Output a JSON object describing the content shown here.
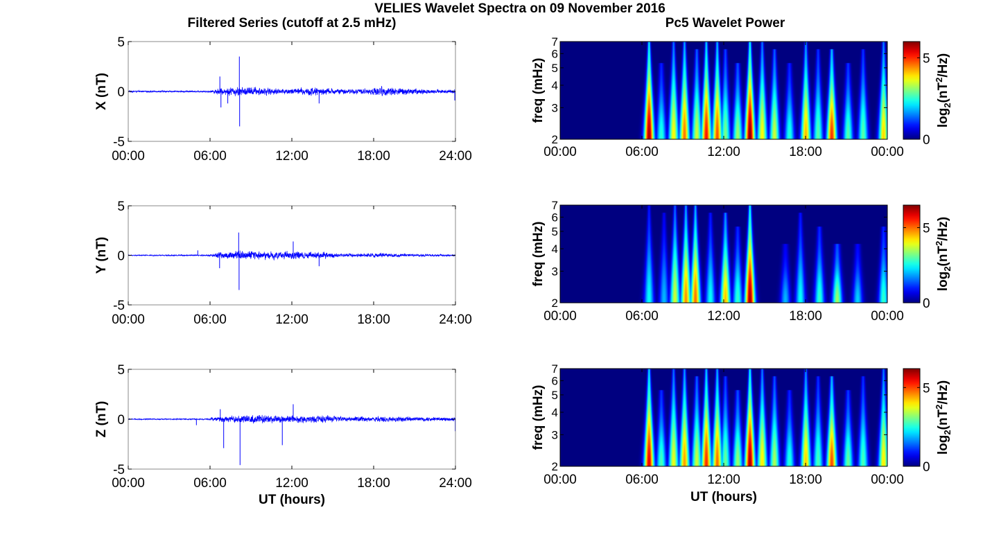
{
  "figure": {
    "suptitle": "VELIES Wavelet Spectra on 09 November 2016",
    "left_title": "Filtered Series (cutoff at 2.5 mHz)",
    "right_title": "Pc5 Wavelet Power",
    "x_label": "UT (hours)",
    "freq_label": "freq (mHz)",
    "colorbar_label_parts": [
      "log",
      "2",
      "(nT",
      "2",
      "/Hz)"
    ]
  },
  "chart_data": [
    {
      "type": "line",
      "component": "X",
      "ylabel": "X (nT)",
      "xlim": [
        0,
        24
      ],
      "ylim": [
        -5,
        5
      ],
      "yticks": [
        -5,
        0,
        5
      ],
      "xticks": [
        "00:00",
        "06:00",
        "12:00",
        "18:00",
        "24:00"
      ],
      "color": "#0000ff",
      "activity": [
        [
          0,
          0.12
        ],
        [
          5.8,
          0.12
        ],
        [
          6.0,
          0.15
        ],
        [
          6.6,
          0.5
        ],
        [
          7.2,
          0.6
        ],
        [
          8.0,
          0.7
        ],
        [
          9.5,
          0.7
        ],
        [
          10.5,
          0.5
        ],
        [
          12.0,
          0.45
        ],
        [
          13.5,
          0.7
        ],
        [
          14.5,
          0.5
        ],
        [
          16.0,
          0.35
        ],
        [
          17.5,
          0.45
        ],
        [
          18.5,
          0.75
        ],
        [
          20.0,
          0.6
        ],
        [
          21.5,
          0.4
        ],
        [
          24,
          0.3
        ]
      ],
      "spikes": [
        {
          "t": 6.72,
          "y": 1.5
        },
        {
          "t": 6.8,
          "y": -1.6
        },
        {
          "t": 7.3,
          "y": -1.2
        },
        {
          "t": 8.15,
          "y": 3.5
        },
        {
          "t": 8.17,
          "y": -3.5
        },
        {
          "t": 14.0,
          "y": -1.2
        },
        {
          "t": 23.95,
          "y": -0.9
        }
      ]
    },
    {
      "type": "line",
      "component": "Y",
      "ylabel": "Y (nT)",
      "xlim": [
        0,
        24
      ],
      "ylim": [
        -5,
        5
      ],
      "yticks": [
        -5,
        0,
        5
      ],
      "xticks": [
        "00:00",
        "06:00",
        "12:00",
        "18:00",
        "24:00"
      ],
      "color": "#0000ff",
      "activity": [
        [
          0,
          0.08
        ],
        [
          5.8,
          0.1
        ],
        [
          6.5,
          0.45
        ],
        [
          8.0,
          0.7
        ],
        [
          9.5,
          0.75
        ],
        [
          10.8,
          0.55
        ],
        [
          12.0,
          0.65
        ],
        [
          13.0,
          0.5
        ],
        [
          14.2,
          0.6
        ],
        [
          15.5,
          0.3
        ],
        [
          17.0,
          0.25
        ],
        [
          18.5,
          0.35
        ],
        [
          19.5,
          0.3
        ],
        [
          21.0,
          0.2
        ],
        [
          24,
          0.15
        ]
      ],
      "spikes": [
        {
          "t": 5.1,
          "y": 0.5
        },
        {
          "t": 6.7,
          "y": -1.3
        },
        {
          "t": 8.1,
          "y": 2.3
        },
        {
          "t": 8.13,
          "y": -3.5
        },
        {
          "t": 12.1,
          "y": 1.4
        },
        {
          "t": 14.0,
          "y": -1.1
        }
      ]
    },
    {
      "type": "line",
      "component": "Z",
      "ylabel": "Z (nT)",
      "xlim": [
        0,
        24
      ],
      "ylim": [
        -5,
        5
      ],
      "yticks": [
        -5,
        0,
        5
      ],
      "xticks": [
        "00:00",
        "06:00",
        "12:00",
        "18:00",
        "24:00"
      ],
      "color": "#0000ff",
      "activity": [
        [
          0,
          0.08
        ],
        [
          5.8,
          0.1
        ],
        [
          6.5,
          0.45
        ],
        [
          8.0,
          0.6
        ],
        [
          9.5,
          0.6
        ],
        [
          11.0,
          0.55
        ],
        [
          12.0,
          0.6
        ],
        [
          13.5,
          0.55
        ],
        [
          14.5,
          0.6
        ],
        [
          16.0,
          0.4
        ],
        [
          17.5,
          0.35
        ],
        [
          18.5,
          0.45
        ],
        [
          20.0,
          0.4
        ],
        [
          22.0,
          0.3
        ],
        [
          24,
          0.3
        ]
      ],
      "spikes": [
        {
          "t": 5.0,
          "y": -0.6
        },
        {
          "t": 6.75,
          "y": 1.0
        },
        {
          "t": 7.0,
          "y": -2.9
        },
        {
          "t": 8.2,
          "y": -4.6
        },
        {
          "t": 11.3,
          "y": -2.6
        },
        {
          "t": 12.1,
          "y": 1.5
        },
        {
          "t": 23.98,
          "y": -1.2
        }
      ]
    },
    {
      "type": "heatmap",
      "component": "X",
      "ylabel": "freq (mHz)",
      "xlim": [
        0,
        24
      ],
      "ylim": [
        2,
        7
      ],
      "yscale": "log",
      "yticks": [
        2,
        3,
        4,
        5,
        6,
        7
      ],
      "xticks": [
        "00:00",
        "06:00",
        "12:00",
        "18:00",
        "00:00"
      ],
      "colorbar": {
        "ticks": [
          0,
          5
        ],
        "max": 6,
        "colormap": "jet"
      },
      "bursts": [
        {
          "t": 6.5,
          "a": 5.8,
          "top": 7
        },
        {
          "t": 7.4,
          "a": 2.5,
          "top": 5
        },
        {
          "t": 8.3,
          "a": 3.8,
          "top": 7
        },
        {
          "t": 9.1,
          "a": 4.6,
          "top": 7
        },
        {
          "t": 10.0,
          "a": 3.5,
          "top": 6
        },
        {
          "t": 10.7,
          "a": 5.2,
          "top": 7
        },
        {
          "t": 11.5,
          "a": 4.8,
          "top": 7
        },
        {
          "t": 12.1,
          "a": 3.0,
          "top": 6
        },
        {
          "t": 13.0,
          "a": 3.2,
          "top": 5
        },
        {
          "t": 13.9,
          "a": 6.0,
          "top": 7
        },
        {
          "t": 14.8,
          "a": 3.8,
          "top": 7
        },
        {
          "t": 15.7,
          "a": 3.5,
          "top": 6
        },
        {
          "t": 16.8,
          "a": 2.5,
          "top": 5
        },
        {
          "t": 18.0,
          "a": 4.2,
          "top": 7
        },
        {
          "t": 18.9,
          "a": 2.8,
          "top": 6
        },
        {
          "t": 19.9,
          "a": 5.0,
          "top": 6
        },
        {
          "t": 21.1,
          "a": 2.8,
          "top": 5
        },
        {
          "t": 22.2,
          "a": 2.8,
          "top": 6
        },
        {
          "t": 23.7,
          "a": 4.0,
          "top": 7
        }
      ]
    },
    {
      "type": "heatmap",
      "component": "Y",
      "ylabel": "freq (mHz)",
      "xlim": [
        0,
        24
      ],
      "ylim": [
        2,
        7
      ],
      "yscale": "log",
      "yticks": [
        2,
        3,
        4,
        5,
        6,
        7
      ],
      "xticks": [
        "00:00",
        "06:00",
        "12:00",
        "18:00",
        "00:00"
      ],
      "colorbar": {
        "ticks": [
          0,
          5
        ],
        "max": 6.5,
        "colormap": "jet"
      },
      "bursts": [
        {
          "t": 6.5,
          "a": 2.5,
          "top": 7
        },
        {
          "t": 7.6,
          "a": 2.0,
          "top": 6
        },
        {
          "t": 8.4,
          "a": 3.8,
          "top": 7
        },
        {
          "t": 9.2,
          "a": 4.8,
          "top": 7
        },
        {
          "t": 9.9,
          "a": 5.0,
          "top": 7
        },
        {
          "t": 11.0,
          "a": 2.5,
          "top": 6
        },
        {
          "t": 12.1,
          "a": 4.5,
          "top": 6
        },
        {
          "t": 13.0,
          "a": 2.8,
          "top": 5
        },
        {
          "t": 13.9,
          "a": 6.3,
          "top": 7
        },
        {
          "t": 16.5,
          "a": 2.0,
          "top": 4
        },
        {
          "t": 17.6,
          "a": 2.5,
          "top": 6
        },
        {
          "t": 19.0,
          "a": 2.8,
          "top": 5
        },
        {
          "t": 20.3,
          "a": 3.5,
          "top": 4
        },
        {
          "t": 21.8,
          "a": 2.2,
          "top": 4
        },
        {
          "t": 23.7,
          "a": 2.8,
          "top": 5
        }
      ]
    },
    {
      "type": "heatmap",
      "component": "Z",
      "ylabel": "freq (mHz)",
      "xlim": [
        0,
        24
      ],
      "ylim": [
        2,
        7
      ],
      "yscale": "log",
      "yticks": [
        2,
        3,
        4,
        5,
        6,
        7
      ],
      "xticks": [
        "00:00",
        "06:00",
        "12:00",
        "18:00",
        "00:00"
      ],
      "colorbar": {
        "ticks": [
          0,
          5
        ],
        "max": 6.2,
        "colormap": "jet"
      },
      "bursts": [
        {
          "t": 6.5,
          "a": 5.6,
          "top": 7
        },
        {
          "t": 7.4,
          "a": 2.8,
          "top": 5
        },
        {
          "t": 8.3,
          "a": 3.8,
          "top": 7
        },
        {
          "t": 9.1,
          "a": 4.5,
          "top": 7
        },
        {
          "t": 10.0,
          "a": 3.6,
          "top": 6
        },
        {
          "t": 10.7,
          "a": 5.2,
          "top": 7
        },
        {
          "t": 11.5,
          "a": 4.8,
          "top": 7
        },
        {
          "t": 12.1,
          "a": 3.0,
          "top": 6
        },
        {
          "t": 13.0,
          "a": 3.3,
          "top": 5
        },
        {
          "t": 13.9,
          "a": 6.0,
          "top": 7
        },
        {
          "t": 14.8,
          "a": 4.0,
          "top": 7
        },
        {
          "t": 15.7,
          "a": 3.4,
          "top": 6
        },
        {
          "t": 16.8,
          "a": 2.6,
          "top": 5
        },
        {
          "t": 18.0,
          "a": 4.2,
          "top": 7
        },
        {
          "t": 18.9,
          "a": 2.8,
          "top": 6
        },
        {
          "t": 19.9,
          "a": 5.0,
          "top": 6
        },
        {
          "t": 21.1,
          "a": 3.0,
          "top": 5
        },
        {
          "t": 22.2,
          "a": 2.8,
          "top": 6
        },
        {
          "t": 23.7,
          "a": 4.0,
          "top": 7
        }
      ]
    }
  ]
}
